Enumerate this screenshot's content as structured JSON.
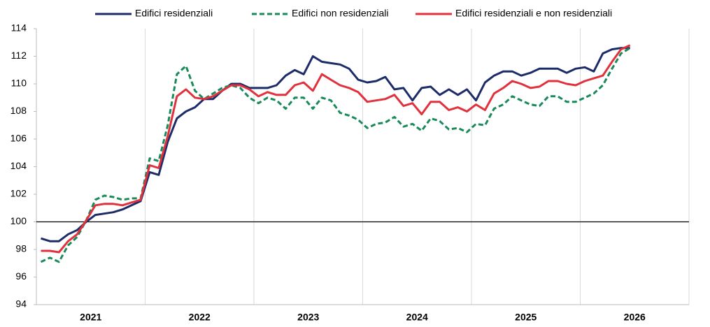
{
  "chart_data": {
    "type": "line",
    "x": [
      2021.042,
      2021.125,
      2021.208,
      2021.292,
      2021.375,
      2021.458,
      2021.542,
      2021.625,
      2021.708,
      2021.792,
      2021.875,
      2021.958,
      2022.042,
      2022.125,
      2022.208,
      2022.292,
      2022.375,
      2022.458,
      2022.542,
      2022.625,
      2022.708,
      2022.792,
      2022.875,
      2022.958,
      2023.042,
      2023.125,
      2023.208,
      2023.292,
      2023.375,
      2023.458,
      2023.542,
      2023.625,
      2023.708,
      2023.792,
      2023.875,
      2023.958,
      2024.042,
      2024.125,
      2024.208,
      2024.292,
      2024.375,
      2024.458,
      2024.542,
      2024.625,
      2024.708,
      2024.792,
      2024.875,
      2024.958,
      2025.042,
      2025.125,
      2025.208,
      2025.292,
      2025.375,
      2025.458,
      2025.542,
      2025.625,
      2025.708,
      2025.792,
      2025.875,
      2025.958,
      2026.042,
      2026.125,
      2026.208,
      2026.292,
      2026.375,
      2026.458
    ],
    "series": [
      {
        "name": "Edifici residenziali",
        "color": "#1c2c68",
        "style": "solid",
        "values": [
          98.8,
          98.6,
          98.6,
          99.1,
          99.4,
          100.0,
          100.5,
          100.6,
          100.7,
          100.9,
          101.2,
          101.5,
          103.6,
          103.4,
          105.8,
          107.5,
          108.0,
          108.3,
          108.9,
          108.9,
          109.5,
          110.0,
          110.0,
          109.7,
          109.7,
          109.7,
          109.9,
          110.6,
          111.0,
          110.7,
          112.0,
          111.6,
          111.5,
          111.4,
          111.1,
          110.3,
          110.1,
          110.2,
          110.5,
          109.6,
          109.7,
          108.8,
          109.7,
          109.8,
          109.2,
          109.6,
          109.2,
          109.6,
          108.8,
          110.1,
          110.6,
          110.9,
          110.9,
          110.6,
          110.8,
          111.1,
          111.1,
          111.1,
          110.8,
          111.1,
          111.2,
          110.9,
          112.2,
          112.5,
          112.6,
          112.6
        ]
      },
      {
        "name": "Edifici non residenziali",
        "color": "#198a5a",
        "style": "dashed",
        "values": [
          97.1,
          97.4,
          97.1,
          98.3,
          98.9,
          100.1,
          101.6,
          101.9,
          101.8,
          101.6,
          101.7,
          101.7,
          104.6,
          104.4,
          107.0,
          110.7,
          111.3,
          109.5,
          108.9,
          109.3,
          109.7,
          109.9,
          109.7,
          109.0,
          108.6,
          109.0,
          108.8,
          108.2,
          109.0,
          109.0,
          108.2,
          109.0,
          108.8,
          107.9,
          107.7,
          107.4,
          106.8,
          107.1,
          107.2,
          107.6,
          106.9,
          107.1,
          106.6,
          107.5,
          107.3,
          106.7,
          106.8,
          106.5,
          107.1,
          107.0,
          108.2,
          108.5,
          109.1,
          108.8,
          108.5,
          108.4,
          109.1,
          109.1,
          108.7,
          108.7,
          109.0,
          109.3,
          109.9,
          111.1,
          112.2,
          112.6
        ]
      },
      {
        "name": "Edifici residenziali e non residenziali",
        "color": "#e0313c",
        "style": "solid",
        "values": [
          97.9,
          97.9,
          97.8,
          98.6,
          99.1,
          100.1,
          101.2,
          101.3,
          101.3,
          101.2,
          101.4,
          101.6,
          104.1,
          103.9,
          106.2,
          109.1,
          109.6,
          109.0,
          108.9,
          109.1,
          109.5,
          109.9,
          109.9,
          109.6,
          109.1,
          109.4,
          109.2,
          109.2,
          109.9,
          110.1,
          109.5,
          110.7,
          110.3,
          109.9,
          109.7,
          109.4,
          108.7,
          108.8,
          108.9,
          109.2,
          108.4,
          108.6,
          107.8,
          108.7,
          108.7,
          108.1,
          108.3,
          108.0,
          108.5,
          108.1,
          109.3,
          109.7,
          110.2,
          110.0,
          109.7,
          109.8,
          110.2,
          110.2,
          110.0,
          109.9,
          110.2,
          110.4,
          110.6,
          111.6,
          112.5,
          112.8
        ]
      }
    ],
    "xlim": [
      2021,
      2027
    ],
    "xticks": [
      2021,
      2022,
      2023,
      2024,
      2025,
      2026
    ],
    "ylim": [
      94,
      114
    ],
    "yticks": [
      94,
      96,
      98,
      100,
      102,
      104,
      106,
      108,
      110,
      112,
      114
    ],
    "reference_line": 100,
    "grid": "x",
    "legend": "top"
  }
}
